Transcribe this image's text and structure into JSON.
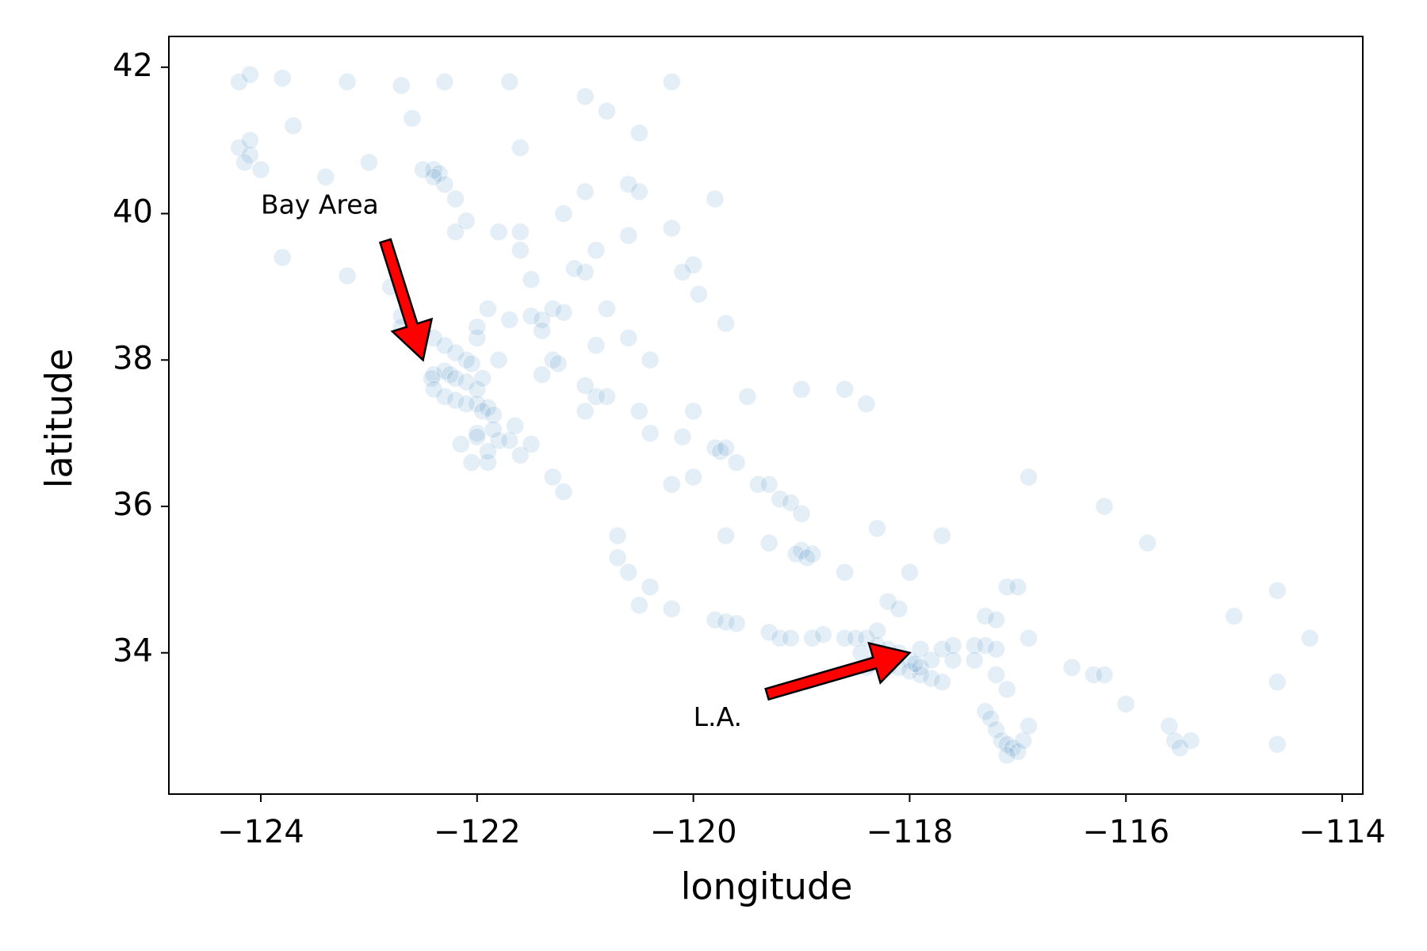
{
  "chart_data": {
    "type": "scatter",
    "x_label": "longitude",
    "y_label": "latitude",
    "color": "#1f77b4",
    "alpha": 0.12,
    "edgecolor": "#ffffff",
    "xlim": [
      -124.85,
      -113.81
    ],
    "ylim": [
      32.07,
      42.42
    ],
    "xticks": [
      {
        "value": -124,
        "label": "−124"
      },
      {
        "value": -122,
        "label": "−122"
      },
      {
        "value": -120,
        "label": "−120"
      },
      {
        "value": -118,
        "label": "−118"
      },
      {
        "value": -116,
        "label": "−116"
      },
      {
        "value": -114,
        "label": "−114"
      }
    ],
    "yticks": [
      34,
      36,
      38,
      40,
      42
    ],
    "annotations": [
      {
        "text": "Bay Area",
        "xy": [
          -122.5,
          38.0
        ],
        "xytext": [
          -124,
          40
        ],
        "color": "#ff0000"
      },
      {
        "text": "L.A.",
        "xy": [
          -118,
          34
        ],
        "xytext": [
          -120,
          33
        ],
        "color": "#ff0000"
      }
    ],
    "x": [
      -124.2,
      -124.1,
      -123.8,
      -123.2,
      -122.7,
      -122.3,
      -121.7,
      -121,
      -120.2,
      -124.2,
      -124.1,
      -124.15,
      -124.0,
      -124.1,
      -123.7,
      -123.4,
      -123.0,
      -122.6,
      -122.4,
      -122.35,
      -122.3,
      -122.2,
      -122.1,
      -122.2,
      -122.4,
      -122.5,
      -121.6,
      -121.0,
      -120.6,
      -121.2,
      -120.5,
      -120.9,
      -120.0,
      -120.1,
      -119.95,
      -123.8,
      -123.2,
      -122.8,
      -122.7,
      -122.6,
      -122.5,
      -122.7,
      -122.4,
      -122.3,
      -122.2,
      -122.1,
      -122.4,
      -122.42,
      -122.3,
      -122.25,
      -122.2,
      -122.1,
      -122.0,
      -122.0,
      -121.9,
      -121.95,
      -121.85,
      -122.4,
      -122.3,
      -122.2,
      -122.1,
      -122.0,
      -121.8,
      -121.9,
      -121.6,
      -121.7,
      -121.5,
      -122.0,
      -121.85,
      -121.9,
      -122.05,
      -121.65,
      -121.5,
      -121.4,
      -121.3,
      -121.2,
      -121.4,
      -121.3,
      -121.25,
      -121.0,
      -120.9,
      -121.0,
      -121.1,
      -121.6,
      -121.8,
      -121.6,
      -121.5,
      -121.7,
      -121.8,
      -122.0,
      -121.9,
      -120.8,
      -120.6,
      -120.4,
      -120.8,
      -120.5,
      -120.1,
      -119.8,
      -119.75,
      -119.7,
      -119.6,
      -119.4,
      -119.3,
      -119.2,
      -119.0,
      -119.1,
      -119.0,
      -119.05,
      -118.9,
      -118.95,
      -119.3,
      -119.7,
      -120.4,
      -120.0,
      -121.4,
      -120.9,
      -121.0,
      -120.2,
      -120.0,
      -121.3,
      -121.2,
      -120.7,
      -120.7,
      -120.6,
      -120.4,
      -120.5,
      -120.2,
      -119.8,
      -119.7,
      -119.6,
      -119.3,
      -119.2,
      -119.1,
      -118.9,
      -118.8,
      -118.6,
      -118.5,
      -118.4,
      -118.3,
      -118.2,
      -118.1,
      -118.0,
      -118.3,
      -118.35,
      -118.2,
      -118.1,
      -118.0,
      -117.9,
      -117.8,
      -117.7,
      -117.9,
      -117.8,
      -117.9,
      -117.7,
      -117.6,
      -117.4,
      -117.3,
      -117.2,
      -117.3,
      -117.2,
      -117.1,
      -117.0,
      -116.9,
      -117.4,
      -117.2,
      -117.1,
      -117.3,
      -117.25,
      -117.2,
      -117.15,
      -117.1,
      -117.05,
      -117.0,
      -117.1,
      -116.95,
      -116.9,
      -116.5,
      -116.3,
      -116.2,
      -116.0,
      -115.6,
      -115.55,
      -115.5,
      -115.4,
      -114.6,
      -114.6,
      -114.6,
      -114.3,
      -115.0,
      -115.8,
      -116.2,
      -116.9,
      -117.7,
      -118.0,
      -118.2,
      -118.1,
      -118.6,
      -118.3,
      -118.4,
      -118.6,
      -119.0,
      -119.5,
      -119.7,
      -120.6,
      -120.2,
      -119.8,
      -120.8,
      -120.5,
      -122.0,
      -122.05,
      -121.95,
      -122.15,
      -118.4,
      -118.15,
      -117.95,
      -117.6,
      -118.3,
      -118.45,
      -118.25
    ],
    "values": [
      41.8,
      41.9,
      41.85,
      41.8,
      41.75,
      41.8,
      41.8,
      41.6,
      41.8,
      40.9,
      40.8,
      40.7,
      40.6,
      41.0,
      41.2,
      40.5,
      40.7,
      41.3,
      40.6,
      40.55,
      40.4,
      40.2,
      39.9,
      39.75,
      40.5,
      40.6,
      40.9,
      40.3,
      40.4,
      40.0,
      40.3,
      39.5,
      39.3,
      39.2,
      38.9,
      39.4,
      39.15,
      39.0,
      38.6,
      38.3,
      38.4,
      38.45,
      38.3,
      38.2,
      38.1,
      38.0,
      37.8,
      37.75,
      37.85,
      37.8,
      37.75,
      37.7,
      37.6,
      37.4,
      37.35,
      37.3,
      37.25,
      37.6,
      37.5,
      37.45,
      37.4,
      37.0,
      36.9,
      36.6,
      36.7,
      36.9,
      36.85,
      36.95,
      37.05,
      36.75,
      36.6,
      37.1,
      38.6,
      38.55,
      38.7,
      38.65,
      38.4,
      38.0,
      37.95,
      37.65,
      37.5,
      39.2,
      39.25,
      39.75,
      39.75,
      39.5,
      39.1,
      38.55,
      38.0,
      38.3,
      38.7,
      38.7,
      38.3,
      38.0,
      37.5,
      37.3,
      36.95,
      36.8,
      36.75,
      36.8,
      36.6,
      36.3,
      36.3,
      36.1,
      35.9,
      36.05,
      35.4,
      35.35,
      35.35,
      35.3,
      35.5,
      35.6,
      37.0,
      37.3,
      37.8,
      38.2,
      37.3,
      36.3,
      36.4,
      36.4,
      36.2,
      35.6,
      35.3,
      35.1,
      34.9,
      34.65,
      34.6,
      34.45,
      34.42,
      34.4,
      34.28,
      34.2,
      34.2,
      34.2,
      34.25,
      34.2,
      34.2,
      34.2,
      34.1,
      34.05,
      34.0,
      33.9,
      33.9,
      33.85,
      33.8,
      33.8,
      33.75,
      33.7,
      33.65,
      33.6,
      33.8,
      33.9,
      34.05,
      34.05,
      34.1,
      34.1,
      34.1,
      34.05,
      34.5,
      34.45,
      34.9,
      34.9,
      34.2,
      33.9,
      33.7,
      33.5,
      33.2,
      33.1,
      32.95,
      32.8,
      32.75,
      32.7,
      32.65,
      32.6,
      32.8,
      33.0,
      33.8,
      33.7,
      33.7,
      33.3,
      33.0,
      32.8,
      32.7,
      32.8,
      34.85,
      33.6,
      32.75,
      34.2,
      34.5,
      35.5,
      36.0,
      36.4,
      35.6,
      35.1,
      34.7,
      34.6,
      35.1,
      35.7,
      37.4,
      37.6,
      37.6,
      37.5,
      38.5,
      39.7,
      39.8,
      40.2,
      41.4,
      41.1,
      38.45,
      37.95,
      37.75,
      36.85,
      33.8,
      33.95,
      33.85,
      33.9,
      34.3,
      34.0,
      33.95
    ]
  }
}
